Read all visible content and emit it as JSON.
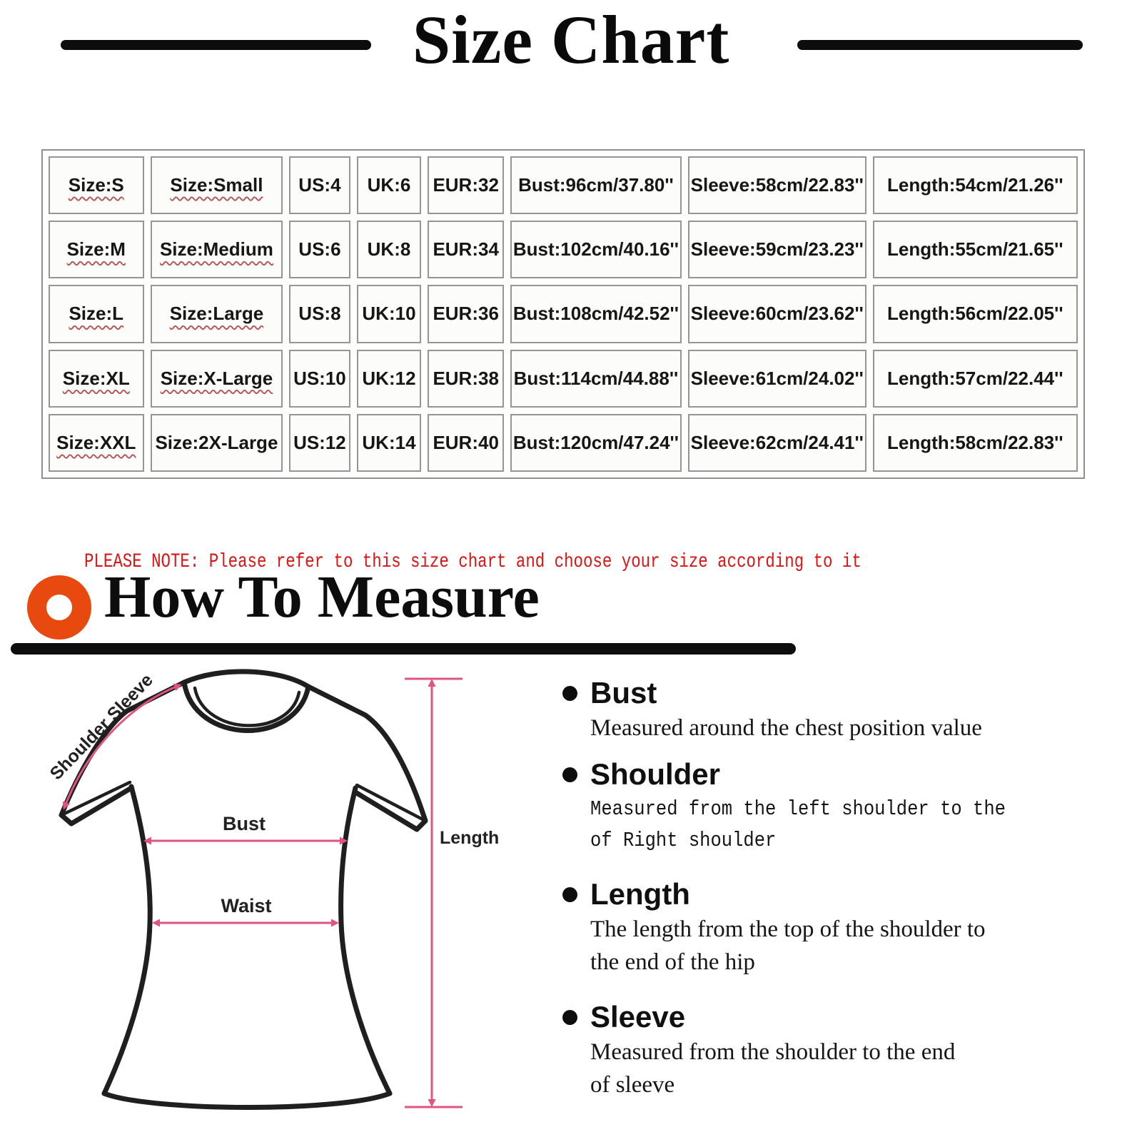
{
  "header": {
    "title": "Size Chart"
  },
  "size_table": {
    "rows": [
      [
        "Size:S",
        "Size:Small",
        "US:4",
        "UK:6",
        "EUR:32",
        "Bust:96cm/37.80''",
        "Sleeve:58cm/22.83''",
        "Length:54cm/21.26''"
      ],
      [
        "Size:M",
        "Size:Medium",
        "US:6",
        "UK:8",
        "EUR:34",
        "Bust:102cm/40.16''",
        "Sleeve:59cm/23.23''",
        "Length:55cm/21.65''"
      ],
      [
        "Size:L",
        "Size:Large",
        "US:8",
        "UK:10",
        "EUR:36",
        "Bust:108cm/42.52''",
        "Sleeve:60cm/23.62''",
        "Length:56cm/22.05''"
      ],
      [
        "Size:XL",
        "Size:X-Large",
        "US:10",
        "UK:12",
        "EUR:38",
        "Bust:114cm/44.88''",
        "Sleeve:61cm/24.02''",
        "Length:57cm/22.44''"
      ],
      [
        "Size:XXL",
        "Size:2X-Large",
        "US:12",
        "UK:14",
        "EUR:40",
        "Bust:120cm/47.24''",
        "Sleeve:62cm/24.41''",
        "Length:58cm/22.83''"
      ]
    ]
  },
  "note": {
    "text": "PLEASE NOTE: Please refer to this size chart and choose your size according to it"
  },
  "how_to_measure": {
    "heading": "How To Measure",
    "icon": "orange-ring-icon",
    "items": [
      {
        "label": "Bust",
        "desc": "Measured around the chest position value"
      },
      {
        "label": "Shoulder",
        "desc": "Measured from the left shoulder to the\nof Right shoulder"
      },
      {
        "label": "Length",
        "desc": "The length from the top of the shoulder to\nthe end of the hip"
      },
      {
        "label": "Sleeve",
        "desc": "Measured from the shoulder to the end\nof sleeve"
      }
    ]
  },
  "diagram": {
    "labels": {
      "shoulder_sleeve": "Shoulder Sleeve",
      "bust": "Bust",
      "waist": "Waist",
      "length": "Length"
    }
  },
  "colors": {
    "accent_pink": "#e0557f",
    "accent_orange": "#e8490f",
    "note_red": "#dc1414"
  }
}
